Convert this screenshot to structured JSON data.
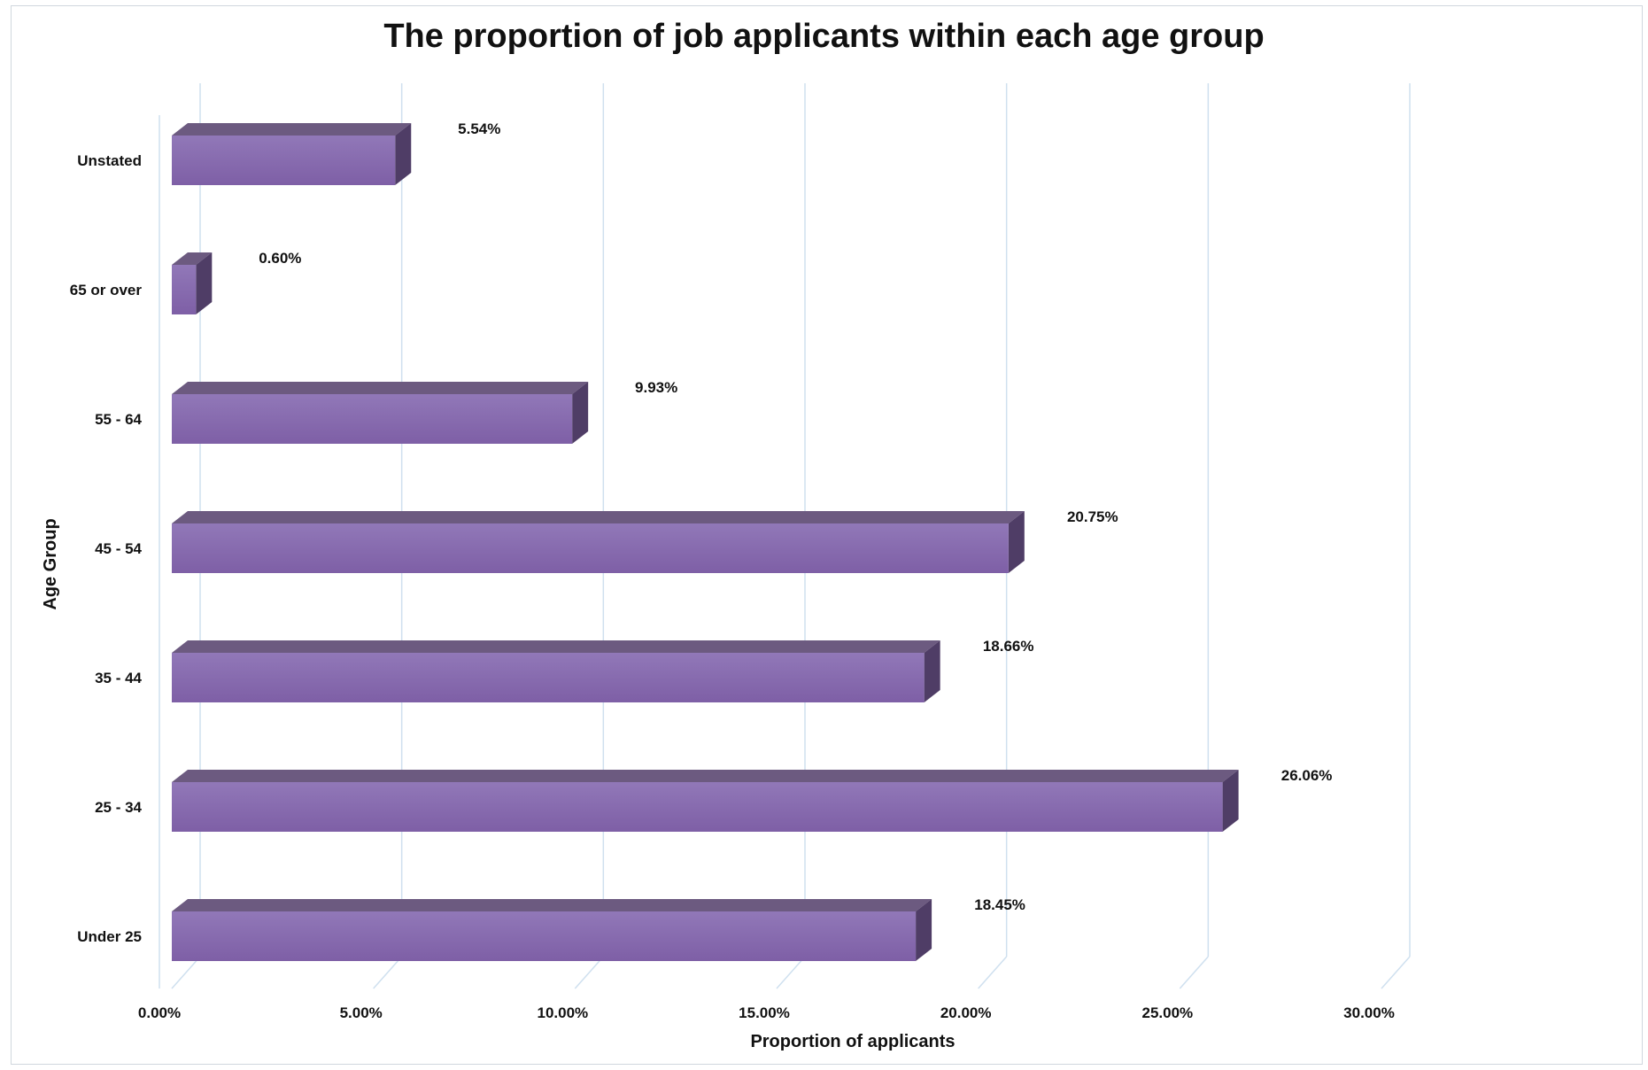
{
  "chart_data": {
    "type": "bar",
    "orientation": "horizontal",
    "title": "The proportion of job applicants within each age group",
    "xlabel": "Proportion of applicants",
    "ylabel": "Age Group",
    "categories": [
      "Under 25",
      "25 - 34",
      "35 - 44",
      "45 - 54",
      "55 - 64",
      "65 or over",
      "Unstated"
    ],
    "values": [
      18.45,
      26.06,
      18.66,
      20.75,
      9.93,
      0.6,
      5.54
    ],
    "data_labels": [
      "18.45%",
      "26.06%",
      "18.66%",
      "20.75%",
      "9.93%",
      "0.60%",
      "5.54%"
    ],
    "xlim": [
      0,
      30
    ],
    "x_ticks": [
      0,
      5,
      10,
      15,
      20,
      25,
      30
    ],
    "x_tick_labels": [
      "0.00%",
      "5.00%",
      "10.00%",
      "15.00%",
      "20.00%",
      "25.00%",
      "30.00%"
    ],
    "grid": true,
    "style": "3d",
    "colors": {
      "bar_front": "#7e5fa6",
      "bar_front_light": "#9178b8",
      "bar_top": "#6c5a80",
      "bar_side": "#4f3d66",
      "grid": "#cfe0ef",
      "text": "#111111"
    }
  }
}
